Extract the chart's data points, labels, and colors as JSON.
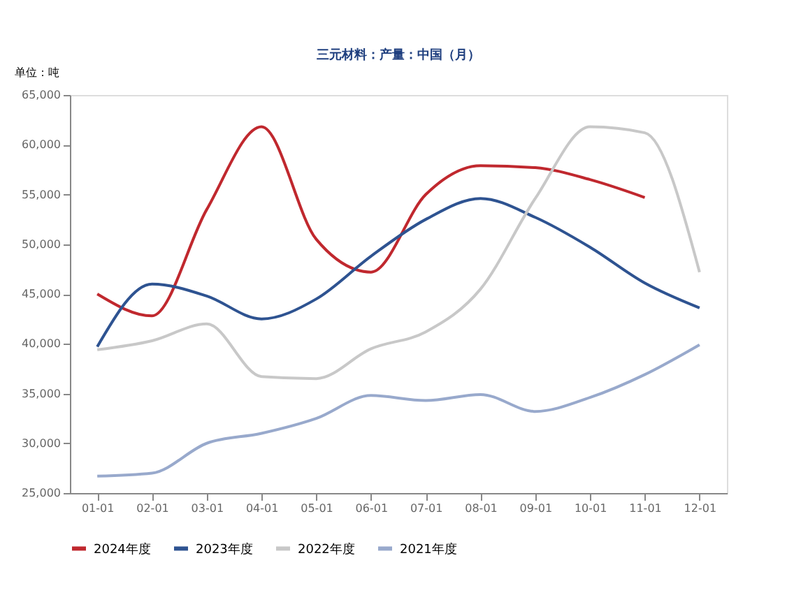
{
  "chart_data": {
    "type": "line",
    "title": "三元材料：产量：中国（月）",
    "ylabel": "单位：吨",
    "categories": [
      "01-01",
      "02-01",
      "03-01",
      "04-01",
      "05-01",
      "06-01",
      "07-01",
      "08-01",
      "09-01",
      "10-01",
      "11-01",
      "12-01"
    ],
    "series": [
      {
        "name": "2024年度",
        "color": "#c0282e",
        "values": [
          45000,
          42800,
          53500,
          61800,
          50500,
          47200,
          55000,
          57900,
          57700,
          56500,
          54700,
          null
        ]
      },
      {
        "name": "2023年度",
        "color": "#2e5391",
        "values": [
          39700,
          46000,
          44800,
          42500,
          44500,
          48800,
          52500,
          54600,
          52700,
          49700,
          46100,
          43600
        ]
      },
      {
        "name": "2022年度",
        "color": "#c8c8c8",
        "values": [
          39400,
          40300,
          42000,
          36700,
          36500,
          39500,
          41200,
          45500,
          54600,
          61800,
          61200,
          47200
        ]
      },
      {
        "name": "2021年度",
        "color": "#98a9cc",
        "values": [
          26700,
          27000,
          30000,
          31000,
          32500,
          34800,
          34300,
          34900,
          33200,
          34600,
          36900,
          39900
        ]
      }
    ],
    "ylim": [
      25000,
      65000
    ],
    "yticks": [
      {
        "value": 25000,
        "label": "25,000"
      },
      {
        "value": 30000,
        "label": "30,000"
      },
      {
        "value": 35000,
        "label": "35,000"
      },
      {
        "value": 40000,
        "label": "40,000"
      },
      {
        "value": 45000,
        "label": "45,000"
      },
      {
        "value": 50000,
        "label": "50,000"
      },
      {
        "value": 55000,
        "label": "55,000"
      },
      {
        "value": 60000,
        "label": "60,000"
      },
      {
        "value": 65000,
        "label": "65,000"
      }
    ],
    "grid": false,
    "legend": "bottom",
    "line_style": "solid",
    "marker": "none"
  }
}
